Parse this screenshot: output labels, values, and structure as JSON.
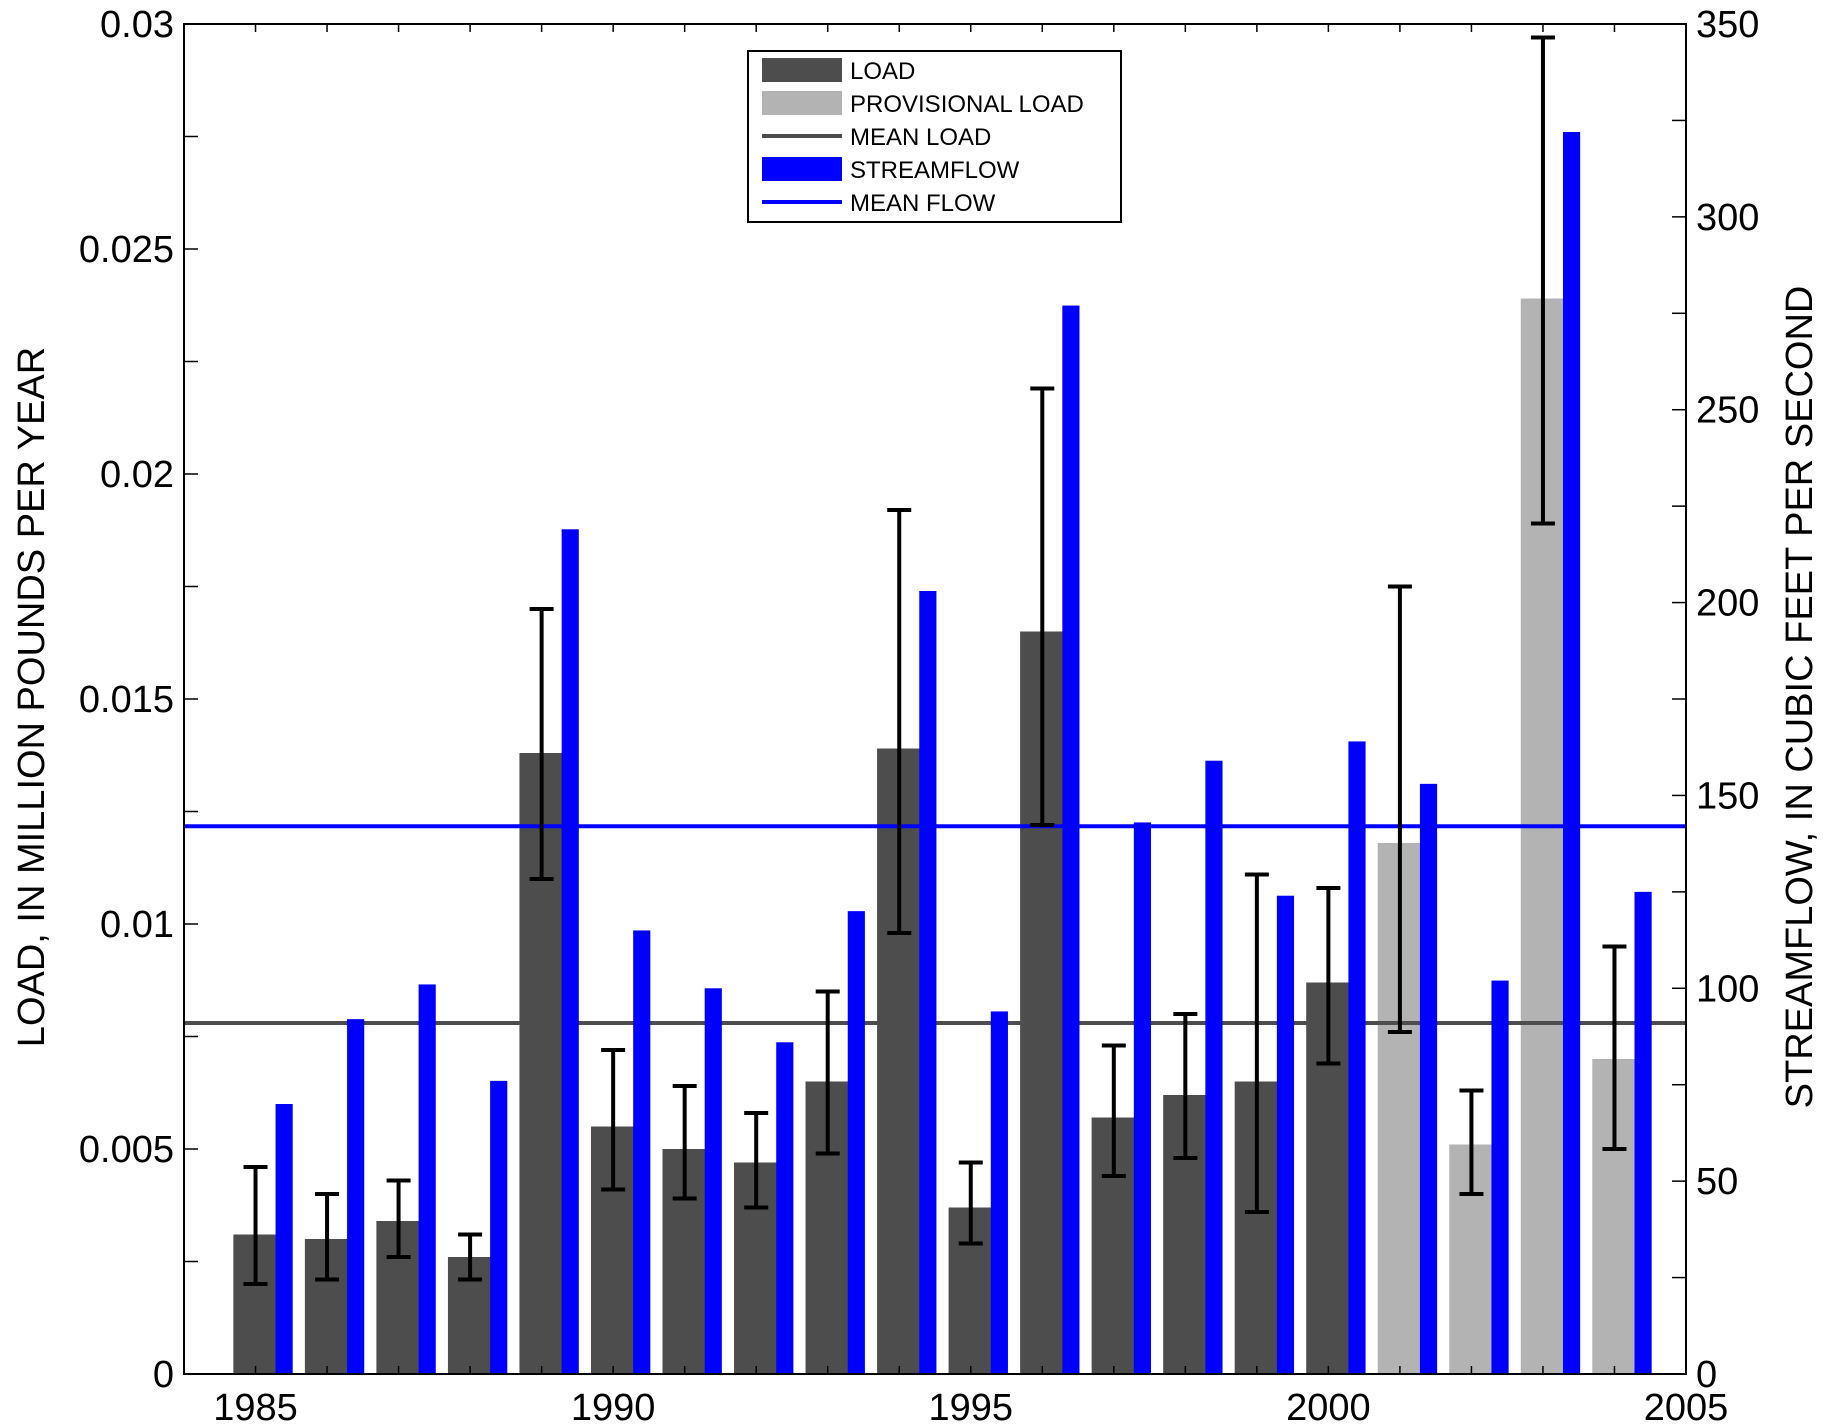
{
  "chart_data": {
    "type": "bar",
    "xlabel": "",
    "ylabel_left": "LOAD, IN MILLION POUNDS PER YEAR",
    "ylabel_right": "STREAMFLOW, IN CUBIC FEET PER SECOND",
    "xlim": [
      1984,
      2005
    ],
    "ylim_left": [
      0,
      0.03
    ],
    "ylim_right": [
      0,
      350
    ],
    "x_ticks": [
      1985,
      1990,
      1995,
      2000,
      2005
    ],
    "y_ticks_left": [
      "0",
      "0.005",
      "0.01",
      "0.015",
      "0.02",
      "0.025",
      "0.03"
    ],
    "y_ticks_right": [
      "0",
      "50",
      "100",
      "150",
      "200",
      "250",
      "300",
      "350"
    ],
    "years": [
      1985,
      1986,
      1987,
      1988,
      1989,
      1990,
      1991,
      1992,
      1993,
      1994,
      1995,
      1996,
      1997,
      1998,
      1999,
      2000,
      2001,
      2002,
      2003,
      2004
    ],
    "load": [
      0.0031,
      0.003,
      0.0034,
      0.0026,
      0.0138,
      0.0055,
      0.005,
      0.0047,
      0.0065,
      0.0139,
      0.0037,
      0.0165,
      0.0057,
      0.0062,
      0.0065,
      0.0087,
      0.0118,
      0.0051,
      0.0239,
      0.007
    ],
    "load_error_low": [
      0.002,
      0.0021,
      0.0026,
      0.0021,
      0.011,
      0.0041,
      0.0039,
      0.0037,
      0.0049,
      0.0098,
      0.0029,
      0.0122,
      0.0044,
      0.0048,
      0.0036,
      0.0069,
      0.0076,
      0.004,
      0.0189,
      0.005
    ],
    "load_error_high": [
      0.0046,
      0.004,
      0.0043,
      0.0031,
      0.017,
      0.0072,
      0.0064,
      0.0058,
      0.0085,
      0.0192,
      0.0047,
      0.0219,
      0.0073,
      0.008,
      0.0111,
      0.0108,
      0.0175,
      0.0063,
      0.0297,
      0.0095
    ],
    "provisional": [
      false,
      false,
      false,
      false,
      false,
      false,
      false,
      false,
      false,
      false,
      false,
      false,
      false,
      false,
      false,
      false,
      true,
      true,
      true,
      true
    ],
    "streamflow": [
      70,
      92,
      101,
      76,
      219,
      115,
      100,
      86,
      120,
      203,
      94,
      277,
      143,
      159,
      124,
      164,
      153,
      102,
      322,
      125
    ],
    "mean_load": 0.0078,
    "mean_flow": 142,
    "legend": {
      "placement": "top-center",
      "items": [
        "LOAD",
        "PROVISIONAL LOAD",
        "MEAN LOAD",
        "STREAMFLOW",
        "MEAN FLOW"
      ]
    },
    "colors": {
      "load": "#4d4d4d",
      "provisional_load": "#b3b3b3",
      "mean_load": "#4d4d4d",
      "streamflow": "#0000ff",
      "mean_flow": "#0000ff",
      "error_bar": "#000000"
    }
  }
}
